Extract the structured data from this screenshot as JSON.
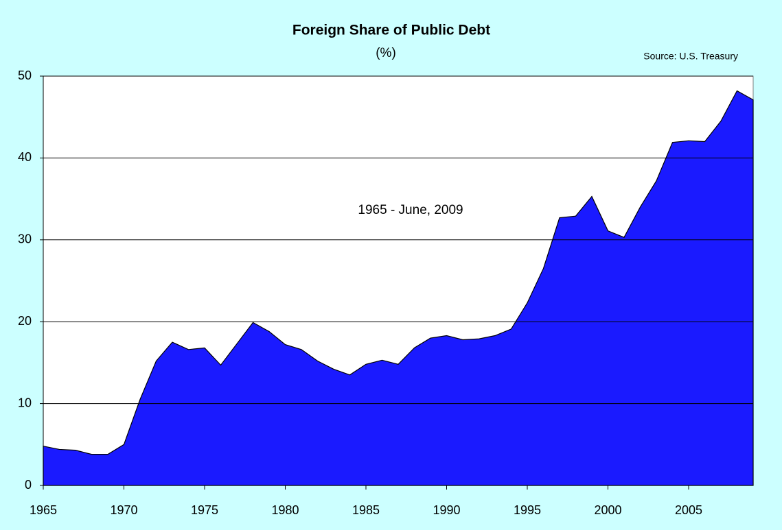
{
  "chart_data": {
    "type": "area",
    "title": "Foreign Share of Public Debt",
    "subtitle": "(%)",
    "source": "Source: U.S. Treasury",
    "annotation": "1965 - June, 2009",
    "x": [
      1965,
      1966,
      1967,
      1968,
      1969,
      1970,
      1971,
      1972,
      1973,
      1974,
      1975,
      1976,
      1977,
      1978,
      1979,
      1980,
      1981,
      1982,
      1983,
      1984,
      1985,
      1986,
      1987,
      1988,
      1989,
      1990,
      1991,
      1992,
      1993,
      1994,
      1995,
      1996,
      1997,
      1998,
      1999,
      2000,
      2001,
      2002,
      2003,
      2004,
      2005,
      2006,
      2007,
      2008,
      2009
    ],
    "values": [
      4.8,
      4.4,
      4.3,
      3.8,
      3.8,
      5.0,
      10.5,
      15.2,
      17.5,
      16.6,
      16.8,
      14.7,
      17.3,
      19.9,
      18.8,
      17.2,
      16.6,
      15.2,
      14.2,
      13.5,
      14.8,
      15.3,
      14.8,
      16.8,
      18.0,
      18.3,
      17.8,
      17.9,
      18.3,
      19.1,
      22.3,
      26.5,
      32.7,
      32.9,
      35.3,
      31.1,
      30.3,
      34.0,
      37.2,
      41.9,
      42.1,
      42.0,
      44.5,
      48.2,
      47.1
    ],
    "color": "#1a1aff",
    "xlim": [
      1965,
      2009
    ],
    "xticks": [
      1965,
      1970,
      1975,
      1980,
      1985,
      1990,
      1995,
      2000,
      2005
    ],
    "ylim": [
      0,
      50
    ],
    "yticks": [
      0,
      10,
      20,
      30,
      40,
      50
    ],
    "grid": true
  }
}
